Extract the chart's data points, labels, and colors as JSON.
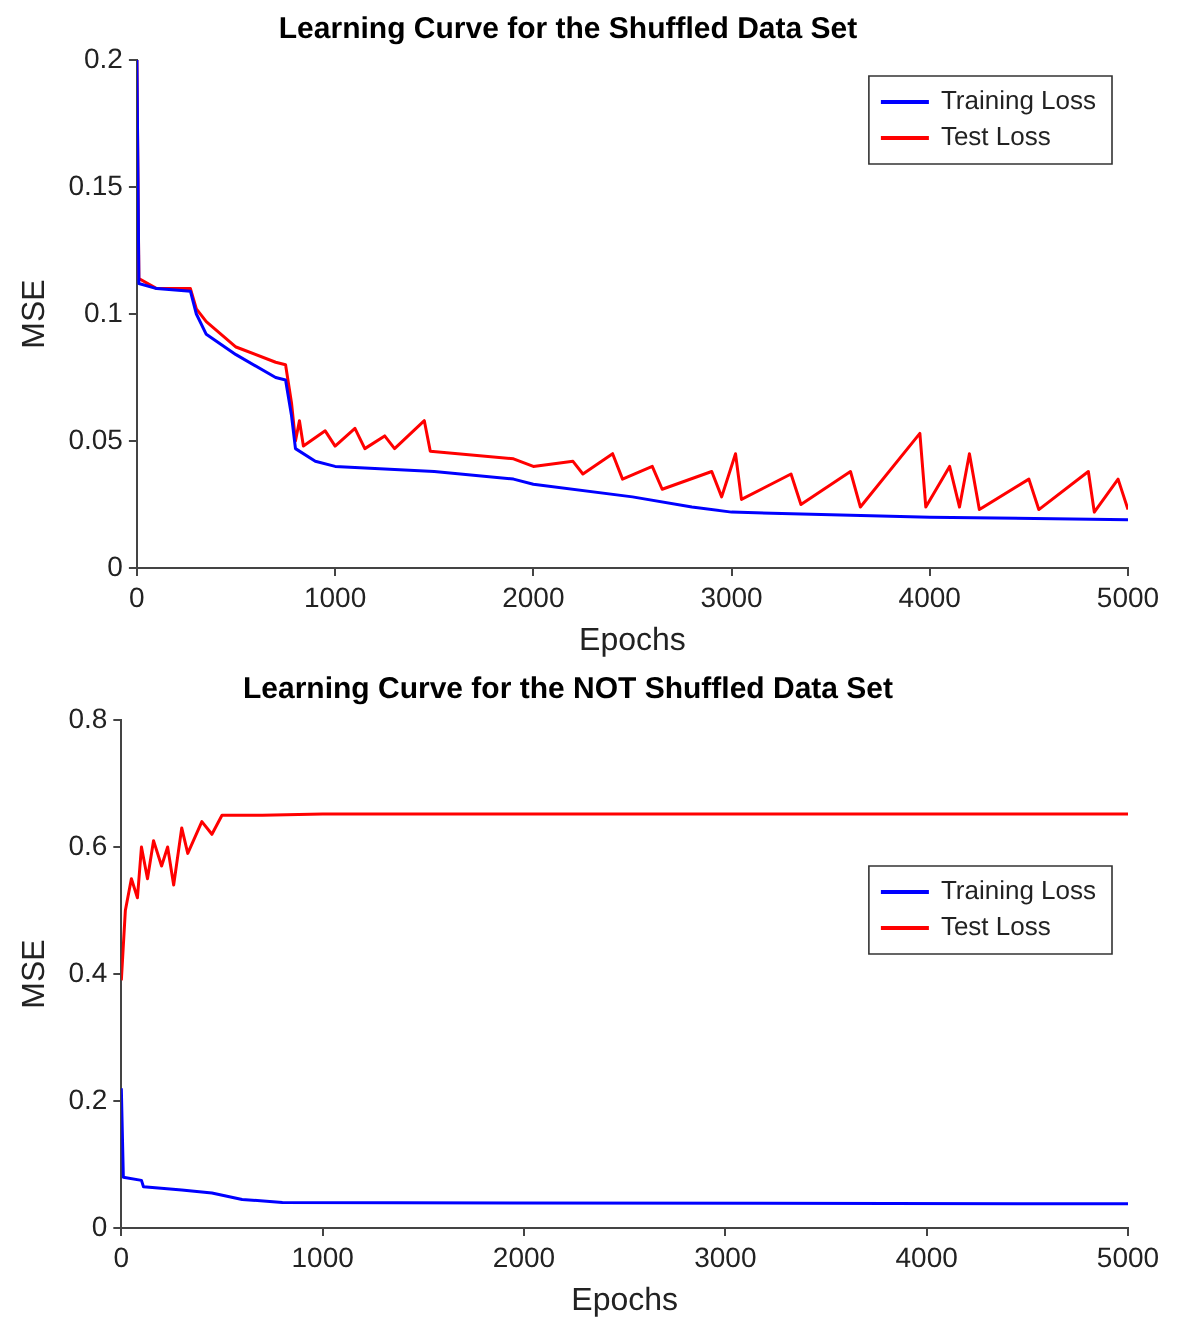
{
  "chart_data": [
    {
      "type": "line",
      "title": "Learning Curve for the Shuffled Data Set",
      "xlabel": "Epochs",
      "ylabel": "MSE",
      "xlim": [
        0,
        5000
      ],
      "xticks": [
        0,
        1000,
        2000,
        3000,
        4000,
        5000
      ],
      "ylim": [
        0,
        0.2
      ],
      "yticks": [
        0,
        0.05,
        0.1,
        0.15,
        0.2
      ],
      "grid": false,
      "legend": "top right",
      "marker": "none",
      "line_style": "solid",
      "series": [
        {
          "name": "Training Loss",
          "color": "#0000ff",
          "x": [
            0,
            10,
            100,
            270,
            300,
            350,
            500,
            700,
            750,
            780,
            800,
            900,
            1000,
            1500,
            1900,
            2000,
            2500,
            2800,
            3000,
            4000,
            5000
          ],
          "values": [
            0.2,
            0.112,
            0.11,
            0.109,
            0.1,
            0.092,
            0.084,
            0.075,
            0.074,
            0.06,
            0.047,
            0.042,
            0.04,
            0.038,
            0.035,
            0.033,
            0.028,
            0.024,
            0.022,
            0.02,
            0.019
          ]
        },
        {
          "name": "Test Loss",
          "color": "#ff0000",
          "x": [
            0,
            10,
            100,
            270,
            300,
            350,
            500,
            700,
            750,
            780,
            800,
            820,
            840,
            950,
            1000,
            1100,
            1150,
            1250,
            1300,
            1450,
            1480,
            1900,
            2000,
            2200,
            2250,
            2400,
            2450,
            2600,
            2650,
            2900,
            2950,
            3020,
            3050,
            3300,
            3350,
            3600,
            3650,
            3950,
            3980,
            4100,
            4150,
            4200,
            4250,
            4500,
            4550,
            4800,
            4830,
            4950,
            5000
          ],
          "values": [
            0.2,
            0.114,
            0.11,
            0.11,
            0.102,
            0.097,
            0.087,
            0.081,
            0.08,
            0.065,
            0.05,
            0.058,
            0.048,
            0.054,
            0.048,
            0.055,
            0.047,
            0.052,
            0.047,
            0.058,
            0.046,
            0.043,
            0.04,
            0.042,
            0.037,
            0.045,
            0.035,
            0.04,
            0.031,
            0.038,
            0.028,
            0.045,
            0.027,
            0.037,
            0.025,
            0.038,
            0.024,
            0.053,
            0.024,
            0.04,
            0.024,
            0.045,
            0.023,
            0.035,
            0.023,
            0.038,
            0.022,
            0.035,
            0.023
          ]
        }
      ]
    },
    {
      "type": "line",
      "title": "Learning Curve for the NOT Shuffled Data Set",
      "xlabel": "Epochs",
      "ylabel": "MSE",
      "xlim": [
        0,
        5000
      ],
      "xticks": [
        0,
        1000,
        2000,
        3000,
        4000,
        5000
      ],
      "ylim": [
        0,
        0.8
      ],
      "yticks": [
        0,
        0.2,
        0.4,
        0.6,
        0.8
      ],
      "grid": false,
      "legend": "right",
      "marker": "none",
      "line_style": "solid",
      "series": [
        {
          "name": "Training Loss",
          "color": "#0000ff",
          "x": [
            0,
            10,
            100,
            110,
            300,
            450,
            600,
            800,
            5000
          ],
          "values": [
            0.22,
            0.08,
            0.075,
            0.065,
            0.06,
            0.055,
            0.045,
            0.04,
            0.038
          ]
        },
        {
          "name": "Test Loss",
          "color": "#ff0000",
          "x": [
            0,
            20,
            50,
            80,
            100,
            130,
            160,
            200,
            230,
            260,
            300,
            330,
            400,
            450,
            500,
            700,
            1000,
            5000
          ],
          "values": [
            0.39,
            0.5,
            0.55,
            0.52,
            0.6,
            0.55,
            0.61,
            0.57,
            0.6,
            0.54,
            0.63,
            0.59,
            0.64,
            0.62,
            0.65,
            0.65,
            0.652,
            0.652
          ]
        }
      ]
    }
  ]
}
